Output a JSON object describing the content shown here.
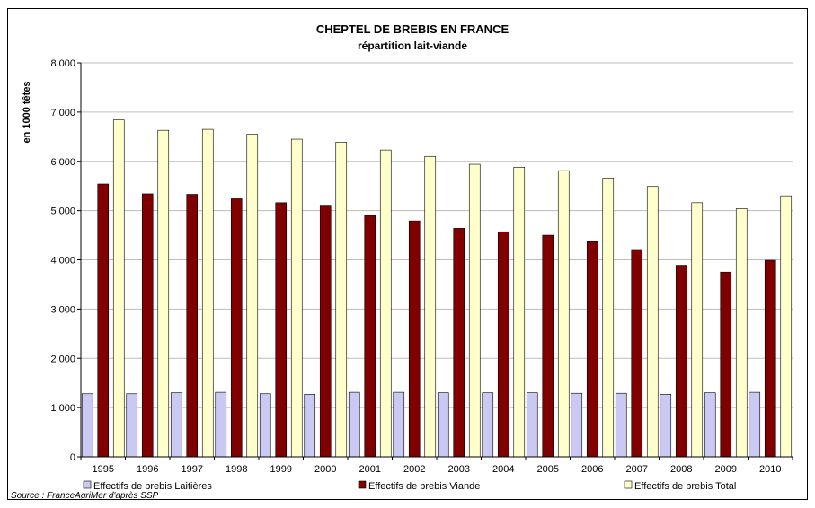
{
  "chart_data": {
    "type": "bar",
    "title": "CHEPTEL DE BREBIS EN FRANCE",
    "subtitle": "répartition lait-viande",
    "ylabel": "en 1000 têtes",
    "xlabel": "",
    "ylim": [
      0,
      8000
    ],
    "yticks": [
      0,
      1000,
      2000,
      3000,
      4000,
      5000,
      6000,
      7000,
      8000
    ],
    "ytick_labels": [
      "0",
      "1 000",
      "2 000",
      "3 000",
      "4 000",
      "5 000",
      "6 000",
      "7 000",
      "8 000"
    ],
    "grid": true,
    "legend_position": "bottom",
    "categories": [
      "1995",
      "1996",
      "1997",
      "1998",
      "1999",
      "2000",
      "2001",
      "2002",
      "2003",
      "2004",
      "2005",
      "2006",
      "2007",
      "2008",
      "2009",
      "2010"
    ],
    "series": [
      {
        "name": "Effectifs de brebis Laitières",
        "color": "#c9c9f3",
        "values": [
          1280,
          1280,
          1300,
          1310,
          1280,
          1270,
          1310,
          1310,
          1300,
          1300,
          1300,
          1290,
          1290,
          1270,
          1300,
          1310
        ]
      },
      {
        "name": "Effectifs de brebis Viande",
        "color": "#800000",
        "values": [
          5540,
          5340,
          5330,
          5240,
          5160,
          5110,
          4900,
          4790,
          4640,
          4570,
          4500,
          4370,
          4210,
          3890,
          3750,
          3990
        ]
      },
      {
        "name": "Effectifs de brebis Total",
        "color": "#ffffcc",
        "values": [
          6840,
          6630,
          6650,
          6550,
          6450,
          6390,
          6230,
          6100,
          5940,
          5880,
          5810,
          5660,
          5490,
          5160,
          5040,
          5300
        ]
      }
    ],
    "source": "Source : FranceAgriMer d'après SSP"
  }
}
